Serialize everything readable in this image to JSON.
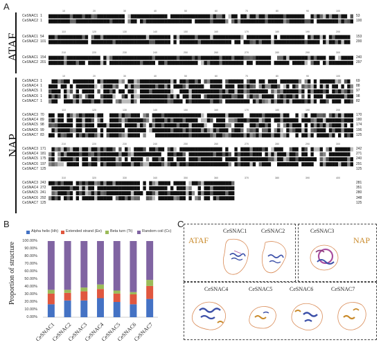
{
  "panels": {
    "a": "A",
    "b": "B",
    "c": "C"
  },
  "groups": {
    "ataf": "ATAF",
    "nap": "NAP"
  },
  "alignment": {
    "block1": {
      "ticks": [
        "10",
        "20",
        "30",
        "40",
        "50",
        "60",
        "70",
        "80",
        "90",
        "100"
      ],
      "rows": [
        {
          "name": "CeSNAC1",
          "start": "1",
          "end": "53"
        },
        {
          "name": "CeSNAC2",
          "start": "1",
          "end": "100"
        }
      ]
    },
    "block2": {
      "ticks": [
        "110",
        "120",
        "130",
        "140",
        "150",
        "160",
        "170",
        "180",
        "190",
        "200"
      ],
      "rows": [
        {
          "name": "CeSNAC1",
          "start": "54",
          "end": "153"
        },
        {
          "name": "CeSNAC2",
          "start": "101",
          "end": "200"
        }
      ]
    },
    "block3": {
      "ticks": [
        "210",
        "220",
        "230",
        "240",
        "250",
        "260",
        "270",
        "280",
        "290",
        "300"
      ],
      "rows": [
        {
          "name": "CeSNAC1",
          "start": "154",
          "end": "240"
        },
        {
          "name": "CeSNAC2",
          "start": "201",
          "end": "297"
        }
      ]
    },
    "block4": {
      "ticks": [
        "10",
        "20",
        "30",
        "40",
        "50",
        "60",
        "70",
        "80",
        "90",
        "100"
      ],
      "rows": [
        {
          "name": "CeSNAC3",
          "start": "1",
          "end": "69"
        },
        {
          "name": "CeSNAC4",
          "start": "1",
          "end": "88"
        },
        {
          "name": "CeSNAC5",
          "start": "1",
          "end": "97"
        },
        {
          "name": "CeSNAC6",
          "start": "1",
          "end": "98"
        },
        {
          "name": "CeSNAC7",
          "start": "1",
          "end": "82"
        }
      ]
    },
    "block5": {
      "ticks": [
        "110",
        "120",
        "130",
        "140",
        "150",
        "160",
        "170",
        "180",
        "190",
        "200"
      ],
      "rows": [
        {
          "name": "CeSNAC3",
          "start": "70",
          "end": "170"
        },
        {
          "name": "CeSNAC4",
          "start": "89",
          "end": "180"
        },
        {
          "name": "CeSNAC5",
          "start": "98",
          "end": "174"
        },
        {
          "name": "CeSNAC6",
          "start": "99",
          "end": "196"
        },
        {
          "name": "CeSNAC7",
          "start": "83",
          "end": "125"
        }
      ]
    },
    "block6": {
      "ticks": [
        "210",
        "220",
        "230",
        "240",
        "250",
        "260",
        "270",
        "280",
        "290",
        "300"
      ],
      "rows": [
        {
          "name": "CeSNAC3",
          "start": "171",
          "end": "242"
        },
        {
          "name": "CeSNAC4",
          "start": "181",
          "end": "271"
        },
        {
          "name": "CeSNAC5",
          "start": "175",
          "end": "240"
        },
        {
          "name": "CeSNAC6",
          "start": "197",
          "end": "291"
        },
        {
          "name": "CeSNAC7",
          "start": "125",
          "end": "125"
        }
      ]
    },
    "block7": {
      "ticks": [
        "310",
        "320",
        "330",
        "340",
        "350",
        "360",
        "370",
        "380",
        "390",
        "400"
      ],
      "rows": [
        {
          "name": "CeSNAC3",
          "start": "243",
          "end": "281"
        },
        {
          "name": "CeSNAC4",
          "start": "272",
          "end": "351"
        },
        {
          "name": "CeSNAC5",
          "start": "241",
          "end": "280"
        },
        {
          "name": "CeSNAC6",
          "start": "292",
          "end": "348"
        },
        {
          "name": "CeSNAC7",
          "start": "125",
          "end": "125"
        }
      ]
    }
  },
  "chart_data": {
    "type": "bar",
    "stacked": true,
    "ylabel": "Proportion of structure",
    "yticks": [
      "0.00%",
      "10.00%",
      "20.00%",
      "30.00%",
      "40.00%",
      "50.00%",
      "60.00%",
      "70.00%",
      "80.00%",
      "90.00%",
      "100.00%"
    ],
    "ylim": [
      0,
      100
    ],
    "categories": [
      "CeSNAC1",
      "CeSNAC2",
      "CeSNAC3",
      "CeSNAC4",
      "CeSNAC5",
      "CeSNAC6",
      "CeSNAC7"
    ],
    "legend_position": "top",
    "series": [
      {
        "name": "Alpha helix (Hh)",
        "color": "#4472c4",
        "values": [
          17,
          22,
          22,
          25,
          20,
          17,
          24
        ]
      },
      {
        "name": "Extended strand (Ee)",
        "color": "#e0573f",
        "values": [
          14,
          10,
          12,
          12,
          11,
          13,
          17
        ]
      },
      {
        "name": "Beta turn (Tt)",
        "color": "#9bbb59",
        "values": [
          5,
          4,
          5,
          6,
          4,
          3,
          8
        ]
      },
      {
        "name": "Random coil (Cc)",
        "color": "#8064a2",
        "values": [
          64,
          64,
          61,
          57,
          65,
          67,
          51
        ]
      }
    ]
  },
  "structures": {
    "ataf_label": "ATAF",
    "nap_label": "NAP",
    "proteins": [
      "CeSNAC1",
      "CeSNAC2",
      "CeSNAC3",
      "CeSNAC4",
      "CeSNAC5",
      "CeSNAC6",
      "CeSNAC7"
    ]
  }
}
